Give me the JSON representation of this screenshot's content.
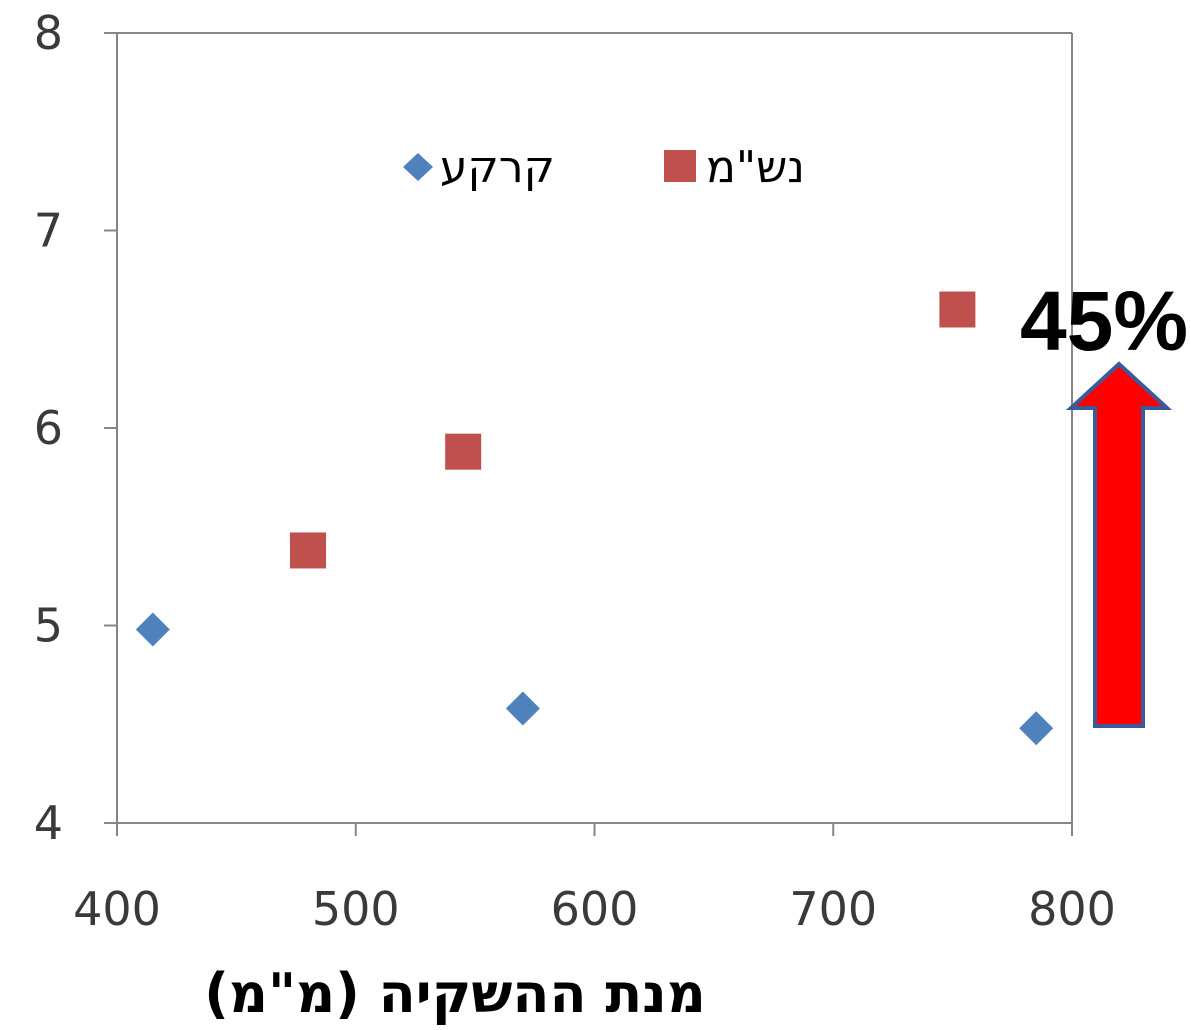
{
  "chart_data": {
    "type": "scatter",
    "title": "",
    "xlabel": "מנת ההשקיה (מ\"מ)",
    "ylabel": "",
    "xlim": [
      400,
      800
    ],
    "ylim": [
      4,
      8
    ],
    "xticks": [
      "400",
      "500",
      "600",
      "700",
      "800"
    ],
    "yticks": [
      "4",
      "5",
      "6",
      "7",
      "8"
    ],
    "grid": false,
    "legend_position": "top",
    "series": [
      {
        "name": "קרקע",
        "marker": "diamond",
        "color": "#4f81bd",
        "points": [
          {
            "x": 415,
            "y": 4.98
          },
          {
            "x": 570,
            "y": 4.58
          },
          {
            "x": 785,
            "y": 4.48
          }
        ]
      },
      {
        "name": "נש\"מ",
        "marker": "square",
        "color": "#c0504d",
        "points": [
          {
            "x": 480,
            "y": 5.38
          },
          {
            "x": 545,
            "y": 5.88
          },
          {
            "x": 752,
            "y": 6.6
          }
        ]
      }
    ],
    "annotation": {
      "text": "45%",
      "arrow_direction": "up",
      "arrow_fill": "#ff0000",
      "arrow_stroke": "#3a5a9a"
    }
  }
}
